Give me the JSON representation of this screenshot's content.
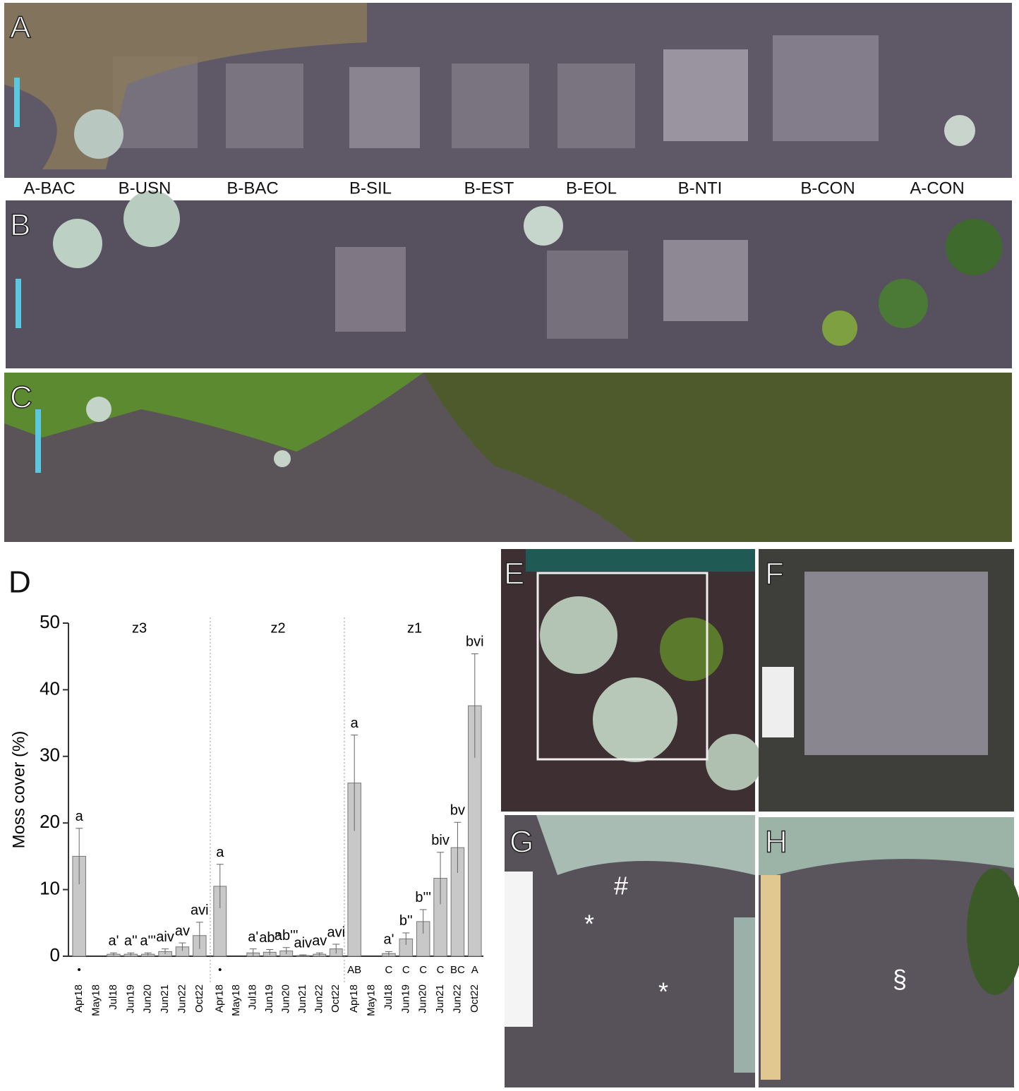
{
  "photo_labels": {
    "panels": [
      "A",
      "B",
      "C",
      "E",
      "F",
      "G",
      "H"
    ],
    "treatments": [
      "A-BAC",
      "B-USN",
      "B-BAC",
      "B-SIL",
      "B-EST",
      "B-EOL",
      "B-NTI",
      "B-CON",
      "A-CON"
    ],
    "marks": [
      "#",
      "*",
      "*",
      "§"
    ]
  },
  "chart_data": {
    "type": "bar",
    "panel": "D",
    "ylabel": "Moss cover (%)",
    "ylim": [
      0,
      50
    ],
    "yticks": [
      0,
      10,
      20,
      30,
      40,
      50
    ],
    "color": "#c8c8c8",
    "panels": [
      {
        "title": "z3",
        "categories": [
          "Apr18",
          "May18",
          "Jul18",
          "Jun19",
          "Jun20",
          "Jun21",
          "Jun22",
          "Oct22"
        ],
        "values": [
          15,
          null,
          0.3,
          0.3,
          0.3,
          0.7,
          1.4,
          3.1
        ],
        "errors": [
          4.2,
          null,
          0.2,
          0.2,
          0.2,
          0.4,
          0.6,
          2.0
        ],
        "letters": [
          "a",
          null,
          "a'",
          "a''",
          "a'''",
          "aiv",
          "av",
          "avi"
        ],
        "group_labels": [
          "•",
          null,
          null,
          null,
          null,
          null,
          null,
          null
        ]
      },
      {
        "title": "z2",
        "categories": [
          "Apr18",
          "May18",
          "Jul18",
          "Jun19",
          "Jun20",
          "Jun21",
          "Jun22",
          "Oct22"
        ],
        "values": [
          10.5,
          null,
          0.5,
          0.6,
          0.8,
          0.1,
          0.3,
          1.1
        ],
        "errors": [
          3.3,
          null,
          0.6,
          0.4,
          0.5,
          0.1,
          0.2,
          0.7
        ],
        "letters": [
          "a",
          null,
          "a'",
          "ab''",
          "ab'''",
          "aiv",
          "av",
          "avi"
        ],
        "group_labels": [
          "•",
          null,
          null,
          null,
          null,
          null,
          null,
          null
        ]
      },
      {
        "title": "z1",
        "categories": [
          "Apr18",
          "May18",
          "Jul18",
          "Jun19",
          "Jun20",
          "Jun21",
          "Jun22",
          "Oct22"
        ],
        "values": [
          26,
          null,
          0.4,
          2.6,
          5.2,
          11.7,
          16.3,
          37.6
        ],
        "errors": [
          7.2,
          null,
          0.3,
          0.9,
          1.8,
          3.9,
          3.8,
          7.8
        ],
        "letters": [
          "a",
          null,
          "a'",
          "b''",
          "b'''",
          "biv",
          "bv",
          "bvi"
        ],
        "group_labels": [
          "AB",
          null,
          "C",
          "C",
          "C",
          "C",
          "BC",
          "A"
        ]
      }
    ]
  }
}
